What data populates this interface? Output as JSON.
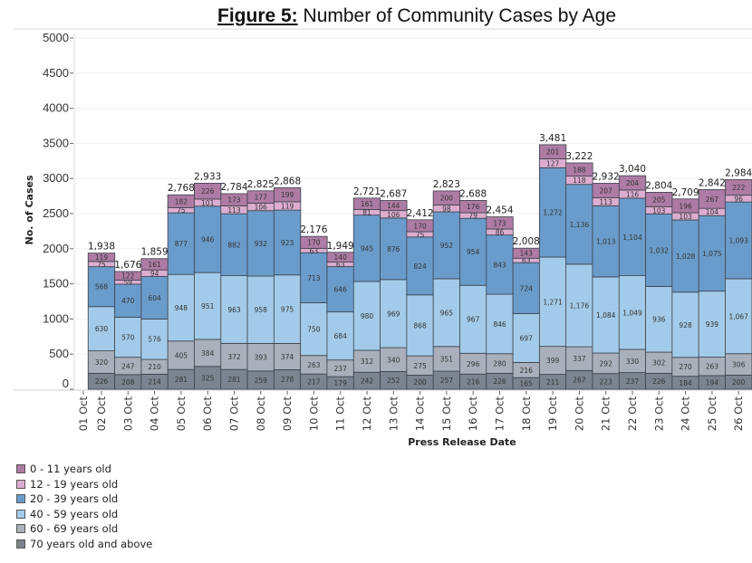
{
  "title": {
    "prefix": "Figure 5:",
    "text": " Number of Community Cases by Age"
  },
  "chart_data": {
    "type": "bar",
    "stacked": true,
    "title": "Figure 5: Number of Community Cases by Age",
    "xlabel": "Press Release Date",
    "ylabel": "No. of Cases",
    "ylim": [
      0,
      5000
    ],
    "yticks": [
      0,
      500,
      1000,
      1500,
      2000,
      2500,
      3000,
      3500,
      4000,
      4500,
      5000
    ],
    "grid": true,
    "legend_position": "bottom-left",
    "x_tick_labels": [
      "01 Oct",
      "02 Oct",
      "03 Oct",
      "04 Oct",
      "05 Oct",
      "06 Oct",
      "07 Oct",
      "08 Oct",
      "09 Oct",
      "10 Oct",
      "11 Oct",
      "12 Oct",
      "13 Oct",
      "14 Oct",
      "15 Oct",
      "16 Oct",
      "17 Oct",
      "18 Oct",
      "19 Oct",
      "20 Oct",
      "21 Oct",
      "22 Oct",
      "23 Oct",
      "24 Oct",
      "25 Oct",
      "26 Oct"
    ],
    "categories": [
      "02 Oct",
      "03 Oct",
      "04 Oct",
      "05 Oct",
      "06 Oct",
      "07 Oct",
      "08 Oct",
      "09 Oct",
      "10 Oct",
      "11 Oct",
      "12 Oct",
      "13 Oct",
      "14 Oct",
      "15 Oct",
      "16 Oct",
      "17 Oct",
      "18 Oct",
      "19 Oct",
      "20 Oct",
      "21 Oct",
      "22 Oct",
      "23 Oct",
      "24 Oct",
      "25 Oct",
      "26 Oct"
    ],
    "totals": [
      "1,938",
      "1,676",
      "1,859",
      "2,768",
      "2,933",
      "2,784",
      "2,825",
      "2,868",
      "2,176",
      "1,949",
      "2,721",
      "2,687",
      "2,412",
      "2,823",
      "2,688",
      "2,454",
      "2,008",
      "3,481",
      "3,222",
      "2,932",
      "3,040",
      "2,804",
      "2,709",
      "2,842",
      "2,984"
    ],
    "series": [
      {
        "name": "70 years old and above",
        "color": "#7b8490",
        "values": [
          226,
          208,
          214,
          281,
          325,
          281,
          259,
          278,
          217,
          179,
          242,
          252,
          200,
          257,
          216,
          226,
          165,
          211,
          267,
          223,
          237,
          226,
          184,
          194,
          200
        ]
      },
      {
        "name": "60 - 69 years old",
        "color": "#a9b0bb",
        "values": [
          320,
          247,
          210,
          405,
          384,
          372,
          393,
          374,
          263,
          237,
          312,
          340,
          275,
          351,
          296,
          280,
          216,
          399,
          337,
          292,
          330,
          302,
          270,
          263,
          306
        ]
      },
      {
        "name": "40 - 59 years old",
        "color": "#a3cbe9",
        "values": [
          630,
          570,
          576,
          948,
          951,
          963,
          958,
          975,
          750,
          684,
          980,
          969,
          868,
          965,
          967,
          846,
          697,
          1271,
          1176,
          1084,
          1049,
          936,
          928,
          939,
          1067
        ]
      },
      {
        "name": "20 - 39 years old",
        "color": "#6a9ccb",
        "values": [
          568,
          470,
          604,
          877,
          946,
          882,
          932,
          923,
          713,
          646,
          945,
          876,
          824,
          952,
          954,
          843,
          724,
          1272,
          1136,
          1013,
          1104,
          1032,
          1028,
          1075,
          1093
        ]
      },
      {
        "name": "12 - 19 years old",
        "color": "#dcadd1",
        "values": [
          75,
          59,
          94,
          75,
          101,
          113,
          106,
          119,
          63,
          63,
          81,
          106,
          75,
          98,
          79,
          86,
          63,
          127,
          118,
          113,
          116,
          103,
          103,
          104,
          96
        ]
      },
      {
        "name": "0 - 11 years old",
        "color": "#ad7ba4",
        "values": [
          119,
          122,
          161,
          182,
          226,
          173,
          177,
          199,
          170,
          140,
          161,
          144,
          170,
          200,
          176,
          173,
          143,
          201,
          188,
          207,
          204,
          205,
          196,
          267,
          222
        ]
      }
    ]
  },
  "legend": [
    {
      "label": "0 - 11 years old",
      "color": "#ad7ba4"
    },
    {
      "label": "12 - 19 years old",
      "color": "#dcadd1"
    },
    {
      "label": "20 - 39 years old",
      "color": "#6a9ccb"
    },
    {
      "label": "40 - 59 years old",
      "color": "#a3cbe9"
    },
    {
      "label": "60 - 69 years old",
      "color": "#a9b0bb"
    },
    {
      "label": "70 years old and above",
      "color": "#7b8490"
    }
  ]
}
